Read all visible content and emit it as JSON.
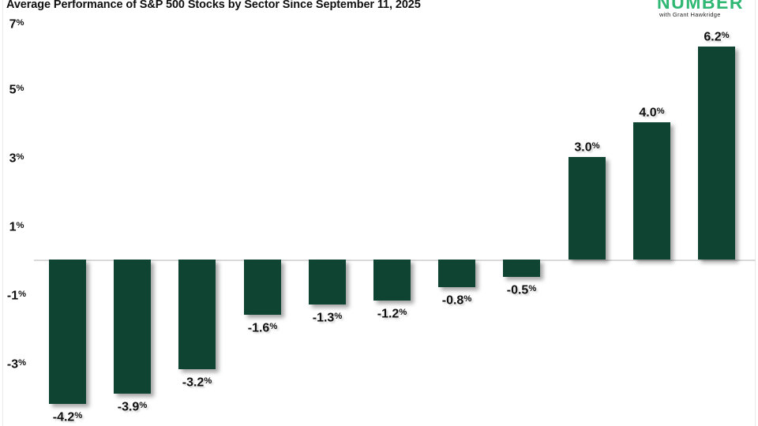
{
  "header": {
    "title": "Average Performance of S&P 500 Stocks by Sector Since September 11, 2025"
  },
  "logo": {
    "brand": "NUMBER",
    "tagline": "with Grant Hawkridge",
    "brand_color": "#2eb873"
  },
  "chart_data": {
    "type": "bar",
    "title": "Average Performance of S&P 500 Stocks by Sector Since September 11, 2025",
    "values": [
      -4.2,
      -3.9,
      -3.2,
      -1.6,
      -1.3,
      -1.2,
      -0.8,
      -0.5,
      3.0,
      4.0,
      6.2
    ],
    "labels": [
      "-4.2%",
      "-3.9%",
      "-3.2%",
      "-1.6%",
      "-1.3%",
      "-1.2%",
      "-0.8%",
      "-0.5%",
      "3.0%",
      "4.0%",
      "6.2%"
    ],
    "ytick_values": [
      7,
      5,
      3,
      1,
      -1,
      -3
    ],
    "ytick_labels": [
      "7%",
      "5%",
      "3%",
      "1%",
      "-1%",
      "-3%"
    ],
    "ylim": [
      -4.8,
      7.2
    ],
    "xlabel": "",
    "ylabel": "",
    "bar_color": "#0e4431",
    "zero_line_color": "#d9d9d9",
    "grid": false,
    "legend": "none",
    "value_labels_position": "outside-end"
  }
}
